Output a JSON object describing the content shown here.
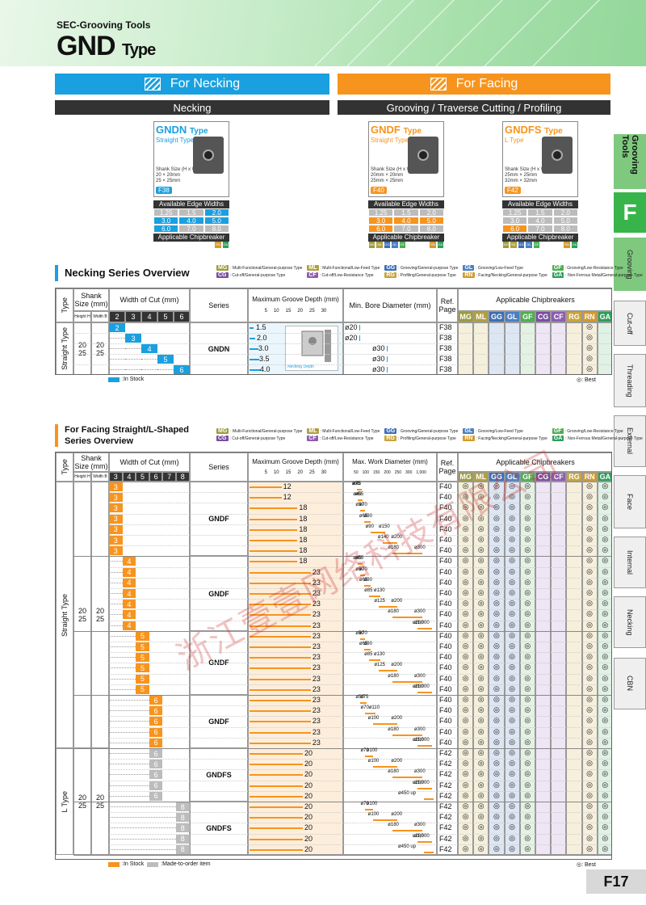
{
  "header": {
    "category": "SEC-Grooving Tools",
    "title": "GND",
    "title_suffix": "Type"
  },
  "side_tabs": {
    "grooving_tools": "Grooving Tools",
    "f": "F",
    "items": [
      "Grooving",
      "Cut-off",
      "Threading",
      "External",
      "Face",
      "Internal",
      "Necking",
      "CBN"
    ]
  },
  "banners": {
    "necking": "For Necking",
    "facing": "For Facing"
  },
  "bars": {
    "necking": "Necking",
    "facing": "Grooving / Traverse Cutting / Profiling"
  },
  "products": [
    {
      "name": "GNDN",
      "suffix": "Type",
      "subtype": "Straight Type",
      "shank": [
        "Shank Size (H x W)",
        "20 × 20mm",
        "25 × 25mm"
      ],
      "page": "F38",
      "color": "#1aa0e0",
      "widths": [
        [
          "1.25",
          "1.5",
          "2.0"
        ],
        [
          "3.0",
          "4.0",
          "5.0"
        ],
        [
          "6.0",
          "7.0",
          "8.0"
        ]
      ],
      "chips": [
        "",
        "",
        "",
        "",
        "",
        "",
        "",
        "",
        "RN",
        "GA"
      ]
    },
    {
      "name": "GNDF",
      "suffix": "Type",
      "subtype": "Straight Type",
      "shank": [
        "Shank Size (H x W)",
        "20mm × 20mm",
        "25mm × 25mm"
      ],
      "page": "F40",
      "color": "#f7941d",
      "widths": [
        [
          "1.25",
          "1.5",
          "2.0"
        ],
        [
          "3.0",
          "4.0",
          "5.0"
        ],
        [
          "6.0",
          "7.0",
          "8.0"
        ]
      ],
      "chips": [
        "MG",
        "ML",
        "GG",
        "GL",
        "GF",
        "",
        "",
        "",
        "RN",
        "GA"
      ]
    },
    {
      "name": "GNDFS",
      "suffix": "Type",
      "subtype": "L Type",
      "shank": [
        "Shank Size (H x W)",
        "25mm × 25mm",
        "32mm × 32mm"
      ],
      "page": "F42",
      "color": "#f7941d",
      "widths": [
        [
          "1.25",
          "1.5",
          "2.0"
        ],
        [
          "3.0",
          "4.0",
          "5.0"
        ],
        [
          "6.0",
          "7.0",
          "8.0"
        ]
      ],
      "chips": [
        "MG",
        "ML",
        "GG",
        "GL",
        "GF",
        "",
        "",
        "",
        "RN",
        "GA"
      ]
    }
  ],
  "labels": {
    "available_edge_widths": "Available Edge Widths (mm)",
    "applicable_chipbreaker": "Applicable Chipbreaker"
  },
  "legend": [
    {
      "code": "MG",
      "text": ": Multi-Functional/General-purpose Type",
      "color": "#9c9c3a"
    },
    {
      "code": "ML",
      "text": ": Multi-Functional/Low-Feed Type",
      "color": "#b0a040"
    },
    {
      "code": "GG",
      "text": ": Grooving/General-purpose Type",
      "color": "#3d6fb6"
    },
    {
      "code": "GL",
      "text": ": Grooving/Low-Feed Type",
      "color": "#4a7fc2"
    },
    {
      "code": "GF",
      "text": ": Grooving/Low-Resistance Type",
      "color": "#4caf50"
    },
    {
      "code": "CG",
      "text": ": Cut-off/General-purpose Type",
      "color": "#7a4ea0"
    },
    {
      "code": "CF",
      "text": ": Cut-off/Low-Resistance Type",
      "color": "#8e5cb0"
    },
    {
      "code": "RG",
      "text": ": Profiling/General-purpose Type",
      "color": "#c9a43a"
    },
    {
      "code": "RN",
      "text": ": Facing/Necking/General-purpose Type",
      "color": "#d29a2b"
    },
    {
      "code": "GA",
      "text": ": Non-Ferrous Metal/General-purpose Type",
      "color": "#2e9e5b"
    }
  ],
  "necking_overview": {
    "title": "Necking Series Overview",
    "headers": {
      "type": "Type",
      "shank": "Shank Size (mm)",
      "height": "Height H",
      "width": "Width B",
      "woc": "Width of Cut (mm)",
      "series": "Series",
      "mgd": "Maximum Groove Depth (mm)",
      "mbd": "Min. Bore Diameter (mm)",
      "ref": "Ref. Page",
      "chips": "Applicable Chipbreakers"
    },
    "woc_cols": [
      "2",
      "3",
      "4",
      "5",
      "6"
    ],
    "depth_ticks": [
      "5",
      "10",
      "15",
      "20",
      "25",
      "30"
    ],
    "chip_cols": [
      "MG",
      "ML",
      "GG",
      "GL",
      "GF",
      "CG",
      "CF",
      "RG",
      "RN",
      "GA"
    ],
    "type_label": "Straight Type",
    "height": [
      "20",
      "25"
    ],
    "width": [
      "20",
      "25"
    ],
    "series": "GNDN",
    "image_label": "Necking Depth",
    "rows": [
      {
        "cut": "2",
        "depth": "1.5",
        "bore": "ø20",
        "page": "F38"
      },
      {
        "cut": "3",
        "depth": "2.0",
        "bore": "ø20",
        "page": "F38"
      },
      {
        "cut": "4",
        "depth": "3.0",
        "bore": "ø30",
        "page": "F38"
      },
      {
        "cut": "5",
        "depth": "3.5",
        "bore": "ø30",
        "page": "F38"
      },
      {
        "cut": "6",
        "depth": "4.0",
        "bore": "ø30",
        "page": "F38"
      }
    ],
    "best_symbol": "◎",
    "stock": "In Stock",
    "best_note": "◎: Best"
  },
  "facing_overview": {
    "title": "For Facing Straight/L-Shaped Series Overview",
    "headers": {
      "type": "Type",
      "shank": "Shank Size (mm)",
      "height": "Height H",
      "width": "Width B",
      "woc": "Width of Cut (mm)",
      "series": "Series",
      "mgd": "Maximum Groove Depth (mm)",
      "mwd": "Max. Work Diameter (mm)",
      "ref": "Ref. Page",
      "chips": "Applicable Chipbreakers"
    },
    "woc_cols": [
      "3",
      "4",
      "5",
      "6",
      "7",
      "8"
    ],
    "depth_ticks": [
      "5",
      "10",
      "15",
      "20",
      "25",
      "30"
    ],
    "dia_ticks": [
      "50",
      "100",
      "150",
      "200",
      "250",
      "300",
      "1,000"
    ],
    "chip_cols": [
      "MG",
      "ML",
      "GG",
      "GL",
      "GF",
      "CG",
      "CF",
      "RG",
      "RN",
      "GA"
    ],
    "type_labels": [
      "Straight Type",
      "L Type"
    ],
    "height": [
      "20",
      "25"
    ],
    "width": [
      "20",
      "25"
    ],
    "groups": [
      {
        "series": "GNDF",
        "cut": "3",
        "stock": true,
        "rows": [
          {
            "depth": "12",
            "d1": "ø35",
            "d2": "ø45",
            "page": "F40"
          },
          {
            "depth": "12",
            "d1": "ø40",
            "d2": "ø55",
            "page": "F40"
          },
          {
            "depth": "18",
            "d1": "ø50",
            "d2": "ø70",
            "page": "F40"
          },
          {
            "depth": "18",
            "d1": "ø65",
            "d2": "ø90",
            "page": "F40"
          },
          {
            "depth": "18",
            "d1": "ø90",
            "d2": "ø150",
            "page": "F40"
          },
          {
            "depth": "18",
            "d1": "ø140",
            "d2": "ø200",
            "page": "F40"
          },
          {
            "depth": "18",
            "d1": "ø180",
            "d2": "ø300",
            "page": "F40"
          }
        ]
      },
      {
        "series": "GNDF",
        "cut": "4",
        "stock": true,
        "rows": [
          {
            "depth": "18",
            "d1": "ø40",
            "d2": "ø55",
            "page": "F40"
          },
          {
            "depth": "23",
            "d1": "ø50",
            "d2": "ø70",
            "page": "F40"
          },
          {
            "depth": "23",
            "d1": "ø65",
            "d2": "ø90",
            "page": "F40"
          },
          {
            "depth": "23",
            "d1": "ø85",
            "d2": "ø130",
            "page": "F40"
          },
          {
            "depth": "23",
            "d1": "ø125",
            "d2": "ø200",
            "page": "F40"
          },
          {
            "depth": "23",
            "d1": "ø180",
            "d2": "ø300",
            "page": "F40"
          },
          {
            "depth": "23",
            "d1": "ø280",
            "d2": "ø1,000",
            "page": "F40"
          }
        ]
      },
      {
        "series": "GNDF",
        "cut": "5",
        "stock": true,
        "rows": [
          {
            "depth": "23",
            "d1": "ø50",
            "d2": "ø70",
            "page": "F40"
          },
          {
            "depth": "23",
            "d1": "ø65",
            "d2": "ø90",
            "page": "F40"
          },
          {
            "depth": "23",
            "d1": "ø85",
            "d2": "ø130",
            "page": "F40"
          },
          {
            "depth": "23",
            "d1": "ø125",
            "d2": "ø200",
            "page": "F40"
          },
          {
            "depth": "23",
            "d1": "ø180",
            "d2": "ø300",
            "page": "F40"
          },
          {
            "depth": "23",
            "d1": "ø280",
            "d2": "ø1,000",
            "page": "F40"
          }
        ]
      },
      {
        "series": "GNDF",
        "cut": "6",
        "stock": true,
        "rows": [
          {
            "depth": "23",
            "d1": "ø50",
            "d2": "ø75",
            "page": "F40"
          },
          {
            "depth": "23",
            "d1": "ø70",
            "d2": "ø110",
            "page": "F40"
          },
          {
            "depth": "23",
            "d1": "ø100",
            "d2": "ø200",
            "page": "F40"
          },
          {
            "depth": "23",
            "d1": "ø180",
            "d2": "ø300",
            "page": "F40"
          },
          {
            "depth": "23",
            "d1": "ø280",
            "d2": "ø1,000",
            "page": "F40"
          }
        ]
      },
      {
        "series": "GNDFS",
        "cut": "6",
        "stock": false,
        "rows": [
          {
            "depth": "20",
            "d1": "ø70",
            "d2": "ø100",
            "page": "F42"
          },
          {
            "depth": "20",
            "d1": "ø100",
            "d2": "ø200",
            "page": "F42"
          },
          {
            "depth": "20",
            "d1": "ø180",
            "d2": "ø300",
            "page": "F42"
          },
          {
            "depth": "20",
            "d1": "ø280",
            "d2": "ø1,000",
            "page": "F42"
          },
          {
            "depth": "20",
            "d1": "ø450 up",
            "d2": "",
            "page": "F42"
          }
        ]
      },
      {
        "series": "GNDFS",
        "cut": "8",
        "stock": false,
        "rows": [
          {
            "depth": "20",
            "d1": "ø70",
            "d2": "ø100",
            "page": "F42"
          },
          {
            "depth": "20",
            "d1": "ø100",
            "d2": "ø200",
            "page": "F42"
          },
          {
            "depth": "20",
            "d1": "ø180",
            "d2": "ø300",
            "page": "F42"
          },
          {
            "depth": "20",
            "d1": "ø280",
            "d2": "ø1,000",
            "page": "F42"
          },
          {
            "depth": "20",
            "d1": "ø450 up",
            "d2": "",
            "page": "F42"
          }
        ]
      }
    ],
    "best_symbol": "◎",
    "stock": "In Stock",
    "made_to_order": "Made-to-order item",
    "best_note": "◎: Best"
  },
  "page_number": "F17",
  "watermark": "浙江壹壹网络科技有限公司",
  "colors": {
    "blue": "#1aa0e0",
    "orange": "#f7941d",
    "gray": "#bcbcbc",
    "green": "#38b54a"
  }
}
